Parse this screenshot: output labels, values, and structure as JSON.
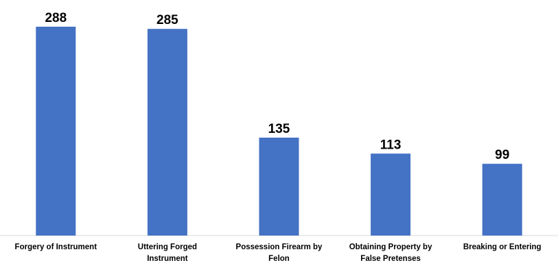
{
  "chart_data": {
    "type": "bar",
    "title": "",
    "xlabel": "",
    "ylabel": "",
    "categories": [
      [
        "Forgery of Instrument"
      ],
      [
        "Uttering Forged",
        "Instrument"
      ],
      [
        "Possession Firearm by",
        "Felon"
      ],
      [
        "Obtaining Property by",
        "False Pretenses"
      ],
      [
        "Breaking or Entering"
      ]
    ],
    "values": [
      288,
      285,
      135,
      113,
      99
    ],
    "ylim": [
      0,
      300
    ],
    "grid": false,
    "legend": "none",
    "bar_color": "#4472C4",
    "data_labels": true
  }
}
